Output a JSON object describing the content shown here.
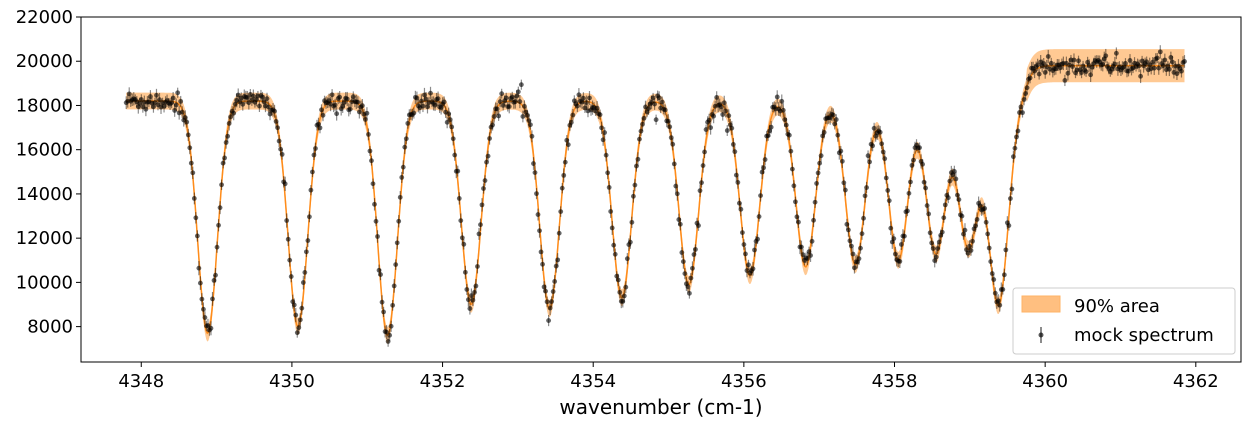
{
  "chart_data": {
    "type": "scatter",
    "title": "",
    "xlabel": "wavenumber (cm-1)",
    "ylabel": "",
    "xlim": [
      4347.2,
      4362.6
    ],
    "ylim": [
      6400,
      22000
    ],
    "xticks": [
      4348,
      4350,
      4352,
      4354,
      4356,
      4358,
      4360,
      4362
    ],
    "yticks": [
      8000,
      10000,
      12000,
      14000,
      16000,
      18000,
      20000,
      22000
    ],
    "grid": false,
    "legend_position": "bottom-right",
    "data_range": [
      4347.8,
      4361.85
    ],
    "series": [
      {
        "name": "90% area",
        "kind": "band",
        "color": "#ffbf80",
        "band_halfwidth_mid": 380,
        "band_halfwidth_cont": 750
      },
      {
        "name": "mock spectrum",
        "kind": "errorbar-points",
        "color": "#000000",
        "n_points": 700,
        "error": 260
      }
    ],
    "model": {
      "continuum_low": 18200,
      "continuum_high": 19800,
      "step_center": 4359.75,
      "line_centers": [
        4348.88,
        4350.08,
        4351.27,
        4352.38,
        4353.42,
        4354.38,
        4355.27,
        4356.08,
        4356.82,
        4357.48,
        4358.05,
        4358.55,
        4358.98,
        4359.38
      ],
      "line_minima": [
        7700,
        8000,
        7600,
        9000,
        8800,
        9300,
        9900,
        10300,
        10700,
        10800,
        11000,
        11300,
        11600,
        9000
      ]
    }
  }
}
